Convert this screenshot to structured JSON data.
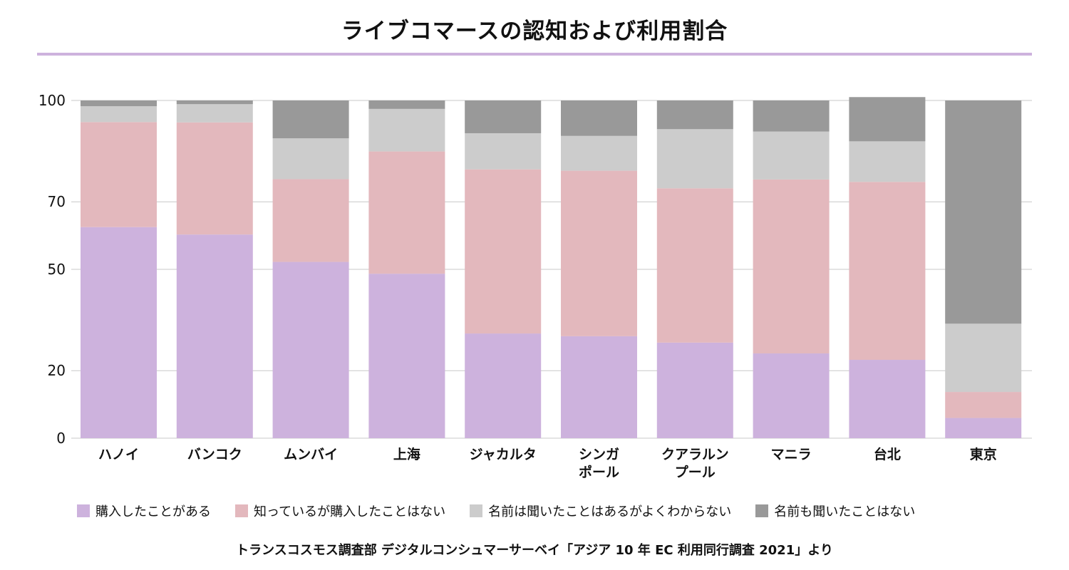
{
  "title": "ライブコマースの認知および利用割合",
  "source": "トランスコスモス調査部 デジタルコンシュマーサーベイ「アジア 10 年 EC 利用同行調査 2021」より",
  "colors": {
    "title_rule": "#cdb2dd",
    "purchased": "#cdb2dd",
    "aware_not_purchased": "#e3b8bd",
    "heard_not_understand": "#cccccc",
    "never_heard": "#999999",
    "grid": "#c8c8c8"
  },
  "chart_data": {
    "type": "bar",
    "stacked": true,
    "categories": [
      [
        "ハノイ"
      ],
      [
        "バンコク"
      ],
      [
        "ムンバイ"
      ],
      [
        "上海"
      ],
      [
        "ジャカルタ"
      ],
      [
        "シンガ",
        "ポール"
      ],
      [
        "クアラルン",
        "プール"
      ],
      [
        "マニラ"
      ],
      [
        "台北"
      ],
      [
        "東京"
      ]
    ],
    "y_ticks": [
      0,
      20,
      50,
      70,
      100
    ],
    "ylim": [
      0,
      100
    ],
    "grid": true,
    "legend_position": "bottom",
    "series": [
      {
        "name": "購入したことがある",
        "color": "#cdb2dd",
        "values": [
          62.5,
          60.3,
          52.2,
          48.7,
          31.0,
          30.2,
          28.3,
          25.1,
          23.2,
          6.0
        ]
      },
      {
        "name": "知っているが購入したことはない",
        "color": "#e3b8bd",
        "values": [
          31.1,
          33.2,
          24.5,
          36.2,
          48.6,
          49.0,
          45.7,
          51.5,
          52.7,
          7.7
        ]
      },
      {
        "name": "名前は聞いたことはあるがよくわからない",
        "color": "#cccccc",
        "values": [
          4.7,
          5.4,
          12.1,
          12.6,
          10.7,
          10.3,
          17.5,
          14.2,
          12.0,
          20.2
        ]
      },
      {
        "name": "名前も聞いたことはない",
        "color": "#999999",
        "values": [
          1.7,
          1.1,
          11.2,
          2.5,
          9.7,
          10.5,
          8.5,
          9.2,
          13.1,
          66.1
        ]
      }
    ]
  }
}
